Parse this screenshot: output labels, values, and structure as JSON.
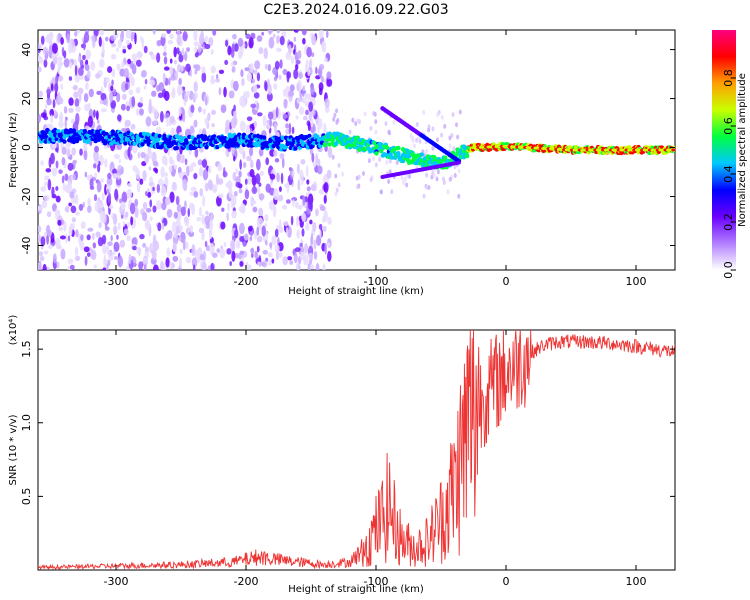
{
  "title": "C2E3.2024.016.09.22.G03",
  "chart_data": [
    {
      "type": "heatmap",
      "xlabel": "Height of straight line (km)",
      "ylabel": "Frequency (Hz)",
      "xlim": [
        -360,
        130
      ],
      "ylim": [
        -50,
        48
      ],
      "xticks": [
        -300,
        -200,
        -100,
        0,
        100
      ],
      "yticks": [
        40,
        20,
        0,
        -20,
        -40
      ],
      "colorbar": {
        "label": "Normalized spectral amplitude",
        "range": [
          0.0,
          1.0
        ],
        "ticks": [
          "0.0",
          "0.2",
          "0.4",
          "0.6",
          "0.8"
        ],
        "colors": [
          "#ffffff",
          "#b27fff",
          "#6a00ff",
          "#0000ff",
          "#00c8ff",
          "#00ff40",
          "#c8ff00",
          "#ffa000",
          "#ff0000",
          "#ff0080"
        ]
      },
      "ridge": {
        "x": [
          -360,
          -300,
          -250,
          -200,
          -170,
          -130,
          -100,
          -80,
          -60,
          -45,
          -35,
          -25,
          0,
          50,
          130
        ],
        "y": [
          5,
          4,
          2,
          3,
          1.5,
          3.5,
          0,
          -3,
          -6,
          -6,
          -2,
          0,
          0.5,
          -1,
          -1
        ]
      }
    },
    {
      "type": "line",
      "xlabel": "Height of straight line (km)",
      "ylabel": "SNR (10 * v/v)",
      "y_multiplier": "(x10⁴)",
      "xlim": [
        -360,
        130
      ],
      "ylim": [
        0,
        1.63
      ],
      "xticks": [
        -300,
        -200,
        -100,
        0,
        100
      ],
      "yticks": [
        "0.5",
        "1.0",
        "1.5"
      ],
      "color": "#ee3333",
      "series": [
        {
          "x": [
            -360,
            -300,
            -250,
            -210,
            -190,
            -170,
            -140,
            -120,
            -105,
            -95,
            -90,
            -85,
            -80,
            -70,
            -60,
            -50,
            -40,
            -35,
            -30,
            -25,
            -20,
            -15,
            -10,
            -5,
            0,
            10,
            20,
            30,
            40,
            60,
            80,
            100,
            130
          ],
          "y": [
            0.02,
            0.03,
            0.04,
            0.06,
            0.1,
            0.07,
            0.04,
            0.06,
            0.2,
            0.35,
            0.45,
            0.3,
            0.2,
            0.15,
            0.2,
            0.35,
            0.55,
            0.75,
            0.95,
            1.1,
            1.15,
            1.2,
            1.25,
            1.3,
            1.35,
            1.42,
            1.48,
            1.53,
            1.55,
            1.55,
            1.54,
            1.52,
            1.48
          ]
        }
      ]
    }
  ]
}
